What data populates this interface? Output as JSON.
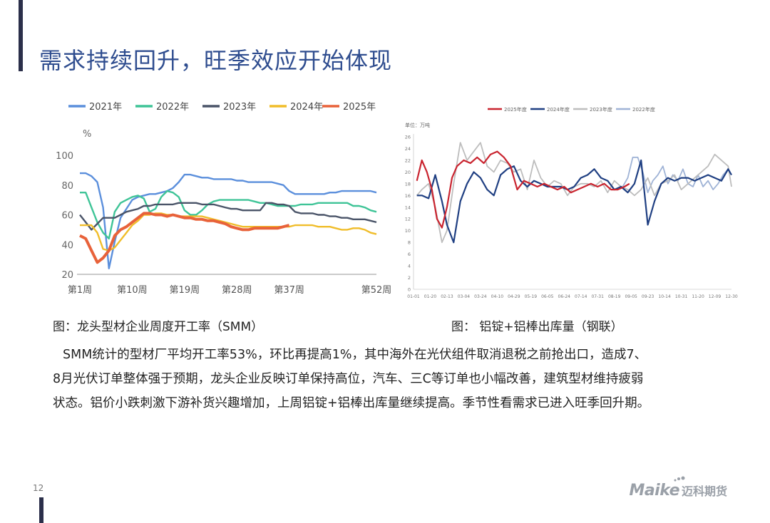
{
  "title": "需求持续回升，旺季效应开始体现",
  "page_number": "12",
  "logo": {
    "brand": "Maike",
    "name": "迈科期货"
  },
  "captions": {
    "left": "图：龙头型材企业周度开工率（SMM）",
    "right": "图： 铝锭+铝棒出库量（钢联）"
  },
  "body": [
    "SMM统计的型材厂平均开工率53%，环比再提高1%，其中海外在光伏组件取消退税之前抢出口，造成7、",
    "8月光伏订单整体强于预期，龙头企业反映订单保持高位，汽车、三C等订单也小幅改善，建筑型材维持疲弱",
    "状态。铝价小跌刺激下游补货兴趣增加，上周铝锭+铝棒出库量继续提高。季节性看需求已进入旺季回升期。"
  ],
  "chart_data": [
    {
      "type": "line",
      "unit": "%",
      "ylim": [
        20,
        100
      ],
      "yticks": [
        20,
        40,
        60,
        80,
        100
      ],
      "xlim": [
        1,
        52
      ],
      "xticks": [
        1,
        10,
        19,
        28,
        37,
        52
      ],
      "xticklabels": [
        "第1周",
        "第10周",
        "第19周",
        "第28周",
        "第37周",
        "第52周"
      ],
      "legend_position": "top",
      "grid": false,
      "series": [
        {
          "name": "2021年",
          "color": "#5b8fdc",
          "x": [
            1,
            2,
            3,
            4,
            5,
            6,
            7,
            8,
            9,
            10,
            11,
            12,
            13,
            14,
            15,
            16,
            17,
            18,
            19,
            20,
            21,
            22,
            23,
            24,
            25,
            26,
            27,
            28,
            29,
            30,
            31,
            32,
            33,
            34,
            35,
            36,
            37,
            38,
            39,
            40,
            41,
            42,
            43,
            44,
            45,
            46,
            47,
            48,
            49,
            50,
            51,
            52
          ],
          "values": [
            88,
            88,
            86,
            82,
            65,
            24,
            42,
            58,
            64,
            70,
            72,
            73,
            74,
            74,
            75,
            76,
            78,
            82,
            87,
            87,
            86,
            85,
            85,
            84,
            84,
            84,
            84,
            83,
            83,
            82,
            82,
            82,
            82,
            82,
            81,
            80,
            76,
            74,
            74,
            74,
            74,
            74,
            74,
            75,
            75,
            76,
            76,
            76,
            76,
            76,
            76,
            75
          ]
        },
        {
          "name": "2022年",
          "color": "#3fc497",
          "x": [
            1,
            2,
            3,
            4,
            5,
            6,
            7,
            8,
            9,
            10,
            11,
            12,
            13,
            14,
            15,
            16,
            17,
            18,
            19,
            20,
            21,
            22,
            23,
            24,
            25,
            26,
            27,
            28,
            29,
            30,
            31,
            32,
            33,
            34,
            35,
            36,
            37,
            38,
            39,
            40,
            41,
            42,
            43,
            44,
            45,
            46,
            47,
            48,
            49,
            50,
            51,
            52
          ],
          "values": [
            75,
            75,
            65,
            55,
            48,
            44,
            62,
            68,
            70,
            72,
            73,
            71,
            62,
            64,
            72,
            76,
            75,
            72,
            63,
            60,
            60,
            63,
            67,
            69,
            70,
            70,
            70,
            70,
            70,
            70,
            69,
            68,
            68,
            67,
            66,
            66,
            66,
            66,
            67,
            67,
            67,
            68,
            68,
            68,
            68,
            68,
            68,
            66,
            66,
            65,
            63,
            62
          ]
        },
        {
          "name": "2023年",
          "color": "#4a5468",
          "x": [
            1,
            2,
            3,
            4,
            5,
            6,
            7,
            8,
            9,
            10,
            11,
            12,
            13,
            14,
            15,
            16,
            17,
            18,
            19,
            20,
            21,
            22,
            23,
            24,
            25,
            26,
            27,
            28,
            29,
            30,
            31,
            32,
            33,
            34,
            35,
            36,
            37,
            38,
            39,
            40,
            41,
            42,
            43,
            44,
            45,
            46,
            47,
            48,
            49,
            50,
            51,
            52
          ],
          "values": [
            60,
            55,
            50,
            54,
            58,
            58,
            58,
            60,
            62,
            63,
            64,
            66,
            66,
            67,
            67,
            67,
            67,
            68,
            68,
            68,
            68,
            67,
            67,
            67,
            66,
            65,
            64,
            64,
            63,
            63,
            63,
            63,
            68,
            68,
            67,
            67,
            66,
            62,
            61,
            61,
            61,
            60,
            60,
            59,
            59,
            58,
            58,
            57,
            57,
            57,
            56,
            55
          ]
        },
        {
          "name": "2024年",
          "color": "#f0bd2a",
          "x": [
            1,
            2,
            3,
            4,
            5,
            6,
            7,
            8,
            9,
            10,
            11,
            12,
            13,
            14,
            15,
            16,
            17,
            18,
            19,
            20,
            21,
            22,
            23,
            24,
            25,
            26,
            27,
            28,
            29,
            30,
            31,
            32,
            33,
            34,
            35,
            36,
            37,
            38,
            39,
            40,
            41,
            42,
            43,
            44,
            45,
            46,
            47,
            48,
            49,
            50,
            51,
            52
          ],
          "values": [
            53,
            53,
            53,
            48,
            37,
            36,
            38,
            43,
            48,
            53,
            56,
            60,
            60,
            61,
            61,
            60,
            60,
            59,
            59,
            59,
            59,
            59,
            58,
            57,
            56,
            55,
            54,
            53,
            52,
            52,
            52,
            52,
            52,
            52,
            52,
            52,
            52,
            53,
            53,
            53,
            53,
            52,
            52,
            52,
            51,
            50,
            50,
            51,
            51,
            50,
            48,
            47
          ]
        },
        {
          "name": "2025年",
          "color": "#e8623a",
          "x": [
            1,
            2,
            3,
            4,
            5,
            6,
            7,
            8,
            9,
            10,
            11,
            12,
            13,
            14,
            15,
            16,
            17,
            18,
            19,
            20,
            21,
            22,
            23,
            24,
            25,
            26,
            27,
            28,
            29,
            30,
            31,
            32,
            33,
            34,
            35,
            36,
            37
          ],
          "values": [
            46,
            44,
            36,
            28,
            31,
            36,
            46,
            50,
            52,
            55,
            58,
            61,
            61,
            60,
            60,
            59,
            60,
            59,
            58,
            58,
            57,
            57,
            56,
            56,
            55,
            54,
            52,
            51,
            50,
            50,
            51,
            51,
            51,
            51,
            51,
            52,
            53
          ]
        }
      ]
    },
    {
      "type": "line",
      "unit_label": "单位：万吨",
      "ylim": [
        0,
        26
      ],
      "yticks": [
        0,
        2,
        4,
        6,
        8,
        10,
        12,
        14,
        16,
        18,
        20,
        22,
        24,
        26
      ],
      "xticklabels": [
        "01-01",
        "01-20",
        "02-13",
        "03-04",
        "03-24",
        "04-10",
        "04-29",
        "05-19",
        "06-05",
        "06-24",
        "07-14",
        "07-31",
        "08-19",
        "09-05",
        "09-23",
        "10-14",
        "10-31",
        "11-20",
        "12-09",
        "12-30"
      ],
      "xlim": [
        0,
        19
      ],
      "legend_position": "top",
      "grid": false,
      "series": [
        {
          "name": "2025年度",
          "color": "#c9242f",
          "x": [
            0.2,
            0.5,
            0.8,
            1.1,
            1.4,
            1.7,
            2.0,
            2.3,
            2.6,
            3.0,
            3.4,
            3.8,
            4.2,
            4.6,
            5.0,
            5.4,
            5.8,
            6.2,
            6.6,
            7.0,
            7.4,
            7.8,
            8.2,
            8.6,
            9.0,
            9.4,
            9.8,
            10.2,
            10.6,
            11.0,
            11.4,
            11.8,
            12.2,
            12.6,
            12.9
          ],
          "values": [
            18.5,
            22,
            20,
            17,
            12,
            10.5,
            14,
            19,
            21,
            22,
            21.5,
            22.5,
            21.5,
            23,
            23.5,
            22.5,
            21,
            17,
            18.5,
            18,
            17.5,
            18,
            17.5,
            17,
            17.5,
            16.5,
            17,
            17.5,
            18,
            17.5,
            18,
            17,
            17,
            17.5,
            18
          ]
        },
        {
          "name": "2024年度",
          "color": "#1f3f82",
          "x": [
            0.2,
            0.5,
            0.9,
            1.3,
            1.7,
            2.0,
            2.4,
            2.8,
            3.2,
            3.6,
            4.0,
            4.4,
            4.8,
            5.2,
            5.6,
            6.0,
            6.4,
            6.8,
            7.2,
            7.6,
            8.0,
            8.4,
            8.8,
            9.2,
            9.6,
            10.0,
            10.4,
            10.8,
            11.2,
            11.6,
            12.0,
            12.4,
            12.8,
            13.2,
            13.6,
            14.0,
            14.4,
            14.8,
            15.2,
            15.6,
            16.0,
            16.4,
            16.8,
            17.2,
            17.6,
            18.0,
            18.4,
            18.8,
            19.0
          ],
          "values": [
            16,
            16,
            15.5,
            19.5,
            15,
            11,
            8,
            15,
            18,
            20,
            19,
            17,
            16,
            19.5,
            20.5,
            21,
            18.5,
            17.5,
            18.5,
            18,
            17.5,
            17.5,
            17.5,
            17,
            17.5,
            19,
            19.5,
            20.5,
            19,
            18.5,
            17,
            17.5,
            16.5,
            18,
            22,
            11,
            15,
            18,
            19,
            18.5,
            19,
            19,
            18.5,
            19,
            19.5,
            19,
            18.5,
            20.5,
            19.5
          ]
        },
        {
          "name": "2023年度",
          "color": "#bdbdbd",
          "x": [
            0.2,
            0.5,
            0.9,
            1.3,
            1.7,
            2.0,
            2.4,
            2.8,
            3.2,
            3.6,
            4.0,
            4.4,
            4.8,
            5.2,
            5.6,
            6.0,
            6.4,
            6.8,
            7.2,
            7.6,
            8.0,
            8.4,
            8.8,
            9.2,
            9.6,
            10.0,
            10.4,
            10.8,
            11.2,
            11.6,
            12.0,
            12.4,
            12.8,
            13.2,
            13.6,
            14.0,
            14.4,
            14.8,
            15.2,
            15.6,
            16.0,
            16.4,
            16.8,
            17.2,
            17.6,
            18.0,
            18.4,
            18.8,
            19.0
          ],
          "values": [
            16,
            17,
            18,
            14,
            8,
            10,
            18,
            25,
            22,
            23.5,
            25,
            21,
            20,
            22,
            21.5,
            20,
            20.5,
            17,
            22,
            19,
            17.5,
            18.5,
            18,
            16,
            17.5,
            18,
            18,
            17.5,
            18.5,
            16.5,
            18.5,
            17.5,
            17,
            16,
            17,
            19,
            16,
            18,
            18.5,
            19.5,
            17,
            18,
            19,
            20,
            21,
            23,
            22,
            21,
            17.5
          ]
        },
        {
          "name": "2022年度",
          "color": "#9fb3d6",
          "x": [
            12.5,
            12.8,
            13.1,
            13.4,
            13.7,
            14.0,
            14.3,
            14.6,
            14.9,
            15.2,
            15.5,
            15.8,
            16.1,
            16.4,
            16.7,
            17.0,
            17.3,
            17.6,
            17.9,
            18.2,
            18.5,
            18.8,
            19.0
          ],
          "values": [
            17.5,
            19,
            22.5,
            22.5,
            20,
            16.5,
            18.5,
            19.5,
            21,
            18,
            19.5,
            18.5,
            20.5,
            18,
            17.5,
            19.5,
            17.5,
            18.5,
            17,
            18,
            19.5,
            20.5,
            19.5
          ]
        }
      ]
    }
  ]
}
